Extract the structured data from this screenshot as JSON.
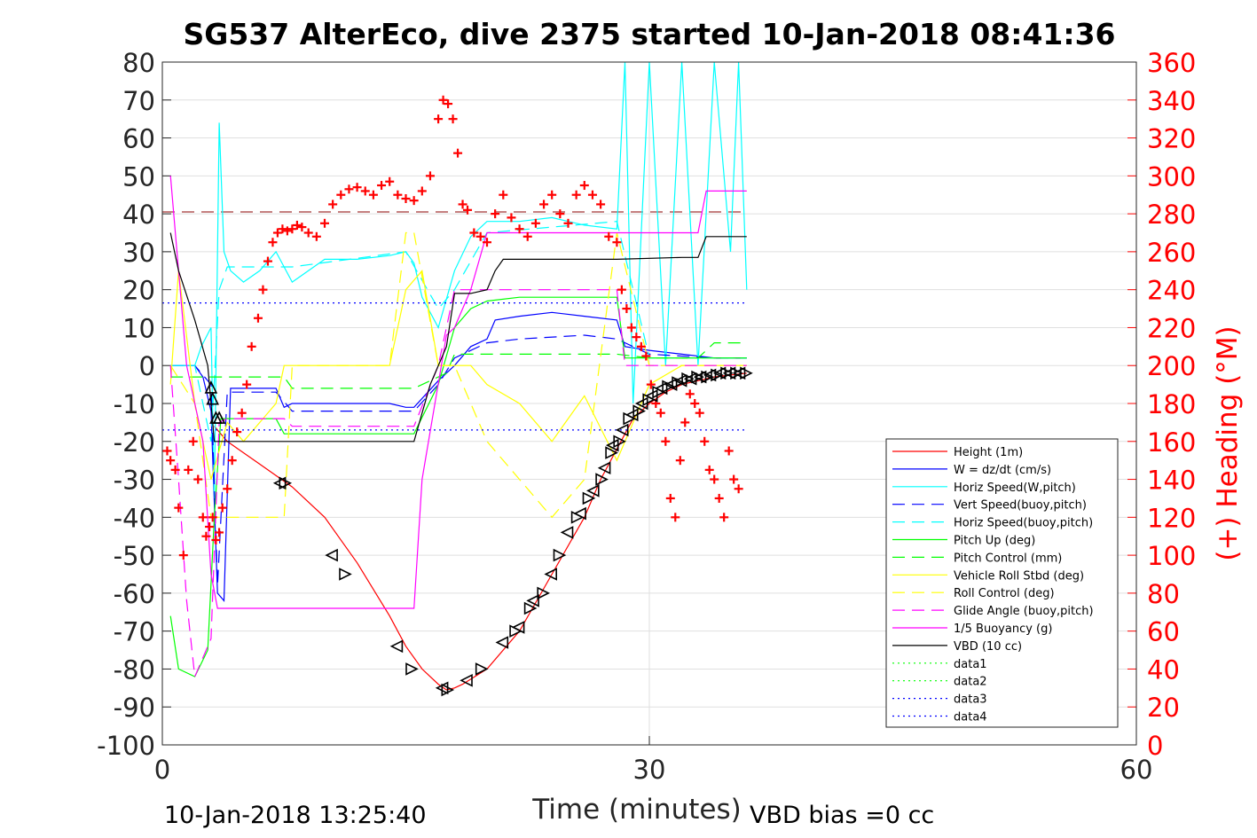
{
  "chart_data": {
    "type": "line",
    "title": "SG537 AlterEco, dive 2375 started 10-Jan-2018 08:41:36",
    "xlabel": "Time (minutes)",
    "ylabel": "",
    "y2label": "(+) Heading (°M)",
    "xlim": [
      0,
      60
    ],
    "ylim": [
      -100,
      80
    ],
    "y2lim": [
      0,
      360
    ],
    "xticks": [
      "0",
      "30",
      "60"
    ],
    "yticks": [
      "80",
      "70",
      "60",
      "50",
      "40",
      "30",
      "20",
      "10",
      "0",
      "-10",
      "-20",
      "-30",
      "-40",
      "-50",
      "-60",
      "-70",
      "-80",
      "-90",
      "-100"
    ],
    "y2ticks": [
      "360",
      "340",
      "320",
      "300",
      "280",
      "260",
      "240",
      "220",
      "200",
      "180",
      "160",
      "140",
      "120",
      "100",
      "80",
      "60",
      "40",
      "20",
      "0"
    ],
    "grid": true,
    "legend_position": "bottom-right",
    "footer_left": "10-Jan-2018 13:25:40",
    "footer_right": "VBD bias =0 cc",
    "colors": {
      "height": "#ff0000",
      "w": "#0000ff",
      "horiz": "#00ffff",
      "pitch": "#00ff00",
      "roll": "#ffff00",
      "glide": "#ff00ff",
      "buoy": "#ff00ff",
      "vbd": "#000000",
      "data12": "#00ff00",
      "data34": "#0000ff",
      "heading": "#ff0000",
      "axis2": "#ff0000"
    },
    "series": [
      {
        "name": "Height (1m)",
        "style": "solid",
        "color": "#ff0000",
        "x": [
          3.2,
          4,
          6,
          8,
          10,
          12,
          14,
          15,
          16,
          17,
          17.5,
          18,
          18.5,
          20,
          22,
          24,
          26,
          27,
          28,
          29,
          30,
          31,
          32,
          33,
          34,
          35,
          36
        ],
        "y": [
          -16,
          -20,
          -26,
          -32,
          -40,
          -52,
          -66,
          -74,
          -80,
          -84,
          -85.5,
          -85,
          -84,
          -80,
          -70,
          -55,
          -40,
          -30,
          -22,
          -14,
          -10,
          -7,
          -5,
          -4,
          -3,
          -2.5,
          -2
        ]
      },
      {
        "name": "W = dz/dt (cm/s)",
        "style": "solid",
        "color": "#0000ff",
        "x": [
          0.5,
          2,
          2.5,
          3,
          3.4,
          3.8,
          4.2,
          5,
          7,
          7.5,
          8,
          10,
          12,
          14,
          15,
          15.5,
          17,
          18,
          19,
          20,
          20.5,
          22,
          24,
          26,
          28,
          28.5,
          30,
          32,
          34,
          36
        ],
        "y": [
          0,
          0,
          -3,
          -12,
          -60,
          -62,
          -6,
          -6,
          -6,
          -11,
          -10,
          -10,
          -10,
          -10,
          -11,
          -11,
          -4,
          0,
          5,
          7,
          12,
          13,
          14,
          13,
          12,
          5,
          4,
          3,
          2,
          2
        ]
      },
      {
        "name": "Horiz Speed(W,pitch)",
        "style": "solid",
        "color": "#00ffff",
        "x": [
          0.5,
          2,
          2.4,
          3,
          3.2,
          3.5,
          3.8,
          4.2,
          5,
          6,
          7,
          8,
          10,
          12,
          14,
          15,
          15.5,
          16,
          17,
          18,
          19,
          20,
          22,
          24,
          26,
          28,
          28.5,
          29,
          30,
          31,
          32,
          33,
          34,
          35,
          35.5,
          36
        ],
        "y": [
          0,
          0,
          5,
          10,
          -35,
          64,
          30,
          25,
          22,
          25,
          30,
          22,
          28,
          28,
          29,
          30,
          27,
          18,
          10,
          25,
          34,
          38,
          38,
          39,
          37,
          36,
          82,
          -10,
          82,
          0,
          82,
          0,
          82,
          30,
          82,
          20
        ]
      },
      {
        "name": "Vert Speed(buoy,pitch)",
        "style": "dashed",
        "color": "#0000ff",
        "x": [
          0.5,
          2,
          3,
          3.4,
          4,
          7,
          8,
          15.5,
          17,
          18,
          20,
          22,
          26,
          28,
          30,
          34,
          36
        ],
        "y": [
          0,
          0,
          -5,
          -58,
          -7,
          -7,
          -12,
          -12,
          -5,
          2,
          6,
          7,
          8,
          7,
          3,
          2,
          2
        ]
      },
      {
        "name": "Horiz Speed(buoy,pitch)",
        "style": "dashed",
        "color": "#00ffff",
        "x": [
          0.5,
          2,
          3,
          3.5,
          4,
          8,
          15,
          17,
          18,
          20,
          28,
          30,
          36
        ],
        "y": [
          0,
          0,
          -20,
          20,
          26,
          26,
          30,
          15,
          20,
          35,
          38,
          2,
          2
        ]
      },
      {
        "name": "Pitch Up (deg)",
        "style": "solid",
        "color": "#00ff00",
        "x": [
          0.5,
          1,
          2,
          2.8,
          3.2,
          3.6,
          4,
          7,
          7.5,
          8,
          15,
          15.5,
          17,
          18,
          19,
          20,
          22,
          24,
          26,
          28,
          28.5,
          30,
          34,
          36
        ],
        "y": [
          -66,
          -80,
          -82,
          -75,
          -40,
          -14,
          -14,
          -14,
          -18,
          -18,
          -18,
          -18,
          -5,
          10,
          15,
          17,
          18,
          18,
          18,
          18,
          2,
          2,
          2,
          2
        ]
      },
      {
        "name": "Pitch Control (mm)",
        "style": "dashed",
        "color": "#00ff00",
        "x": [
          0.5,
          2,
          3,
          7.5,
          8,
          15.5,
          17.5,
          18,
          28,
          30,
          33,
          34,
          36
        ],
        "y": [
          -3,
          -3,
          -3,
          -3,
          -6,
          -6,
          -2,
          3,
          3,
          2,
          2,
          6,
          6
        ]
      },
      {
        "name": "Vehicle Roll Stbd (deg)",
        "style": "solid",
        "color": "#ffff00",
        "x": [
          0.5,
          1,
          2,
          3,
          4,
          5,
          7,
          7.5,
          8,
          10,
          12,
          14,
          15,
          16,
          17,
          18,
          19,
          20,
          22,
          24,
          26,
          28,
          30,
          32,
          34,
          36
        ],
        "y": [
          -5,
          25,
          -10,
          -30,
          -15,
          -20,
          -10,
          0,
          0,
          0,
          0,
          0,
          20,
          25,
          0,
          0,
          0,
          -5,
          -10,
          -20,
          -8,
          -25,
          -5,
          0,
          0,
          0
        ]
      },
      {
        "name": "Roll Control (deg)",
        "style": "dashed",
        "color": "#ffff00",
        "x": [
          0.5,
          2,
          3,
          4,
          7.5,
          8,
          14,
          15,
          15.5,
          17,
          18,
          20,
          22,
          24,
          26,
          28,
          30,
          36
        ],
        "y": [
          0,
          -10,
          -40,
          -40,
          -40,
          0,
          0,
          35,
          35,
          0,
          0,
          -20,
          -30,
          -40,
          -30,
          35,
          0,
          0
        ]
      },
      {
        "name": "Glide Angle (buoy,pitch)",
        "style": "dashed",
        "color": "#ff00ff",
        "x": [
          0.5,
          1,
          1.5,
          2,
          3,
          3.5,
          4,
          7.5,
          8,
          15.5,
          17,
          18,
          20,
          28,
          28.5,
          30,
          36
        ],
        "y": [
          0,
          -30,
          -62,
          -82,
          -72,
          -15,
          -14,
          -14,
          -16,
          -16,
          0,
          20,
          20,
          20,
          0,
          0,
          0
        ]
      },
      {
        "name": "1/5 Buoyancy (g)",
        "style": "solid",
        "color": "#ff00ff",
        "x": [
          0.5,
          1.5,
          2.5,
          3,
          3.4,
          5,
          10,
          15.5,
          16,
          17.5,
          18,
          19,
          20,
          28,
          33,
          33.5,
          36
        ],
        "y": [
          50,
          0,
          -20,
          -55,
          -64,
          -64,
          -64,
          -64,
          -30,
          8,
          10,
          20,
          35,
          35,
          35,
          46,
          46
        ]
      },
      {
        "name": "VBD (10 cc)",
        "style": "solid",
        "color": "#000000",
        "x": [
          0.5,
          1,
          2,
          2.8,
          3.2,
          8,
          15.5,
          16.5,
          17.5,
          18,
          19,
          20,
          20.5,
          21,
          28,
          32,
          33,
          33.5,
          36
        ],
        "y": [
          35,
          25,
          12,
          0,
          -20,
          -20,
          -20,
          -5,
          5,
          19,
          19,
          20,
          25,
          28,
          28,
          28.5,
          28.5,
          34,
          34
        ]
      },
      {
        "name": "data1",
        "style": "dotted",
        "color": "#00ff00",
        "x": [],
        "y": []
      },
      {
        "name": "data2",
        "style": "dotted",
        "color": "#00ff00",
        "x": [],
        "y": []
      },
      {
        "name": "data3",
        "style": "dotted",
        "color": "#0000ff",
        "x": [
          0,
          36
        ],
        "y": [
          -17,
          -17
        ]
      },
      {
        "name": "data4",
        "style": "dotted",
        "color": "#0000ff",
        "x": [
          0,
          36
        ],
        "y": [
          16.5,
          16.5
        ]
      }
    ],
    "reference_lines": [
      {
        "style": "dashed",
        "color": "#8b0000",
        "y": 40.5,
        "x": [
          0,
          36
        ]
      }
    ],
    "heading_points": {
      "axis": "right",
      "marker": "+",
      "color": "#ff0000",
      "x": [
        0.3,
        0.5,
        0.8,
        1.0,
        1.3,
        1.6,
        1.9,
        2.2,
        2.5,
        2.7,
        2.9,
        3.1,
        3.3,
        3.5,
        3.7,
        4.0,
        4.3,
        4.6,
        4.9,
        5.2,
        5.5,
        5.9,
        6.2,
        6.5,
        6.8,
        7.1,
        7.4,
        7.7,
        8.0,
        8.3,
        8.6,
        9.0,
        9.5,
        10.0,
        10.5,
        11.0,
        11.5,
        12.0,
        12.5,
        13.0,
        13.5,
        14.0,
        14.5,
        15.0,
        15.5,
        16.0,
        16.5,
        17.0,
        17.3,
        17.6,
        17.9,
        18.2,
        18.5,
        18.8,
        19.2,
        19.6,
        20.0,
        20.5,
        21.0,
        21.5,
        22.0,
        22.5,
        23.0,
        23.5,
        24.0,
        24.5,
        25.0,
        25.5,
        26.0,
        26.5,
        27.0,
        27.5,
        28.0,
        28.3,
        28.6,
        28.9,
        29.2,
        29.5,
        29.8,
        30.1,
        30.4,
        30.7,
        31.0,
        31.3,
        31.6,
        31.9,
        32.2,
        32.5,
        32.8,
        33.1,
        33.4,
        33.7,
        34.0,
        34.3,
        34.6,
        34.9,
        35.2,
        35.5
      ],
      "y": [
        155,
        150,
        145,
        125,
        100,
        145,
        160,
        140,
        120,
        110,
        115,
        120,
        108,
        112,
        125,
        135,
        150,
        165,
        175,
        190,
        210,
        225,
        240,
        255,
        265,
        270,
        272,
        271,
        272,
        274,
        273,
        270,
        268,
        275,
        285,
        290,
        293,
        294,
        292,
        290,
        295,
        297,
        290,
        288,
        287,
        292,
        300,
        330,
        340,
        338,
        330,
        312,
        285,
        282,
        270,
        268,
        265,
        280,
        290,
        278,
        272,
        268,
        275,
        285,
        290,
        280,
        275,
        290,
        295,
        290,
        285,
        268,
        265,
        240,
        230,
        220,
        215,
        210,
        205,
        190,
        180,
        175,
        160,
        130,
        120,
        150,
        170,
        185,
        180,
        175,
        160,
        145,
        140,
        130,
        120,
        155,
        140,
        135
      ]
    },
    "vbd_markers": {
      "marker": "triangle",
      "color": "#000000",
      "x": [
        3.0,
        3.1,
        3.3,
        3.5,
        7.3,
        7.5,
        10.5,
        11.2,
        14.5,
        15.3,
        17.3,
        17.5,
        18.8,
        19.6,
        21.0,
        21.7,
        22.0,
        22.6,
        22.9,
        23.4,
        24.0,
        24.4,
        25.0,
        25.5,
        25.8,
        26.2,
        26.6,
        27.0,
        27.3,
        27.6,
        27.8,
        28.1,
        28.4,
        28.7,
        29.0,
        29.3,
        29.6,
        29.9,
        30.2,
        30.5,
        30.8,
        31.1,
        31.4,
        31.7,
        32.0,
        32.3,
        32.6,
        32.9,
        33.2,
        33.5,
        33.8,
        34.1,
        34.4,
        34.7,
        35.0,
        35.3,
        35.6,
        35.9
      ],
      "y": [
        -6,
        -9,
        -14,
        -14,
        -31,
        -31,
        -50,
        -55,
        -74,
        -80,
        -85,
        -85.5,
        -83,
        -80,
        -73,
        -70,
        -69,
        -64,
        -62,
        -60,
        -55,
        -50,
        -44,
        -40,
        -39,
        -35,
        -33,
        -30,
        -27,
        -23,
        -21,
        -20,
        -17,
        -14,
        -13,
        -12,
        -10,
        -9,
        -8,
        -7,
        -6,
        -5.5,
        -5,
        -4.5,
        -4,
        -3.5,
        -3.5,
        -3,
        -3,
        -3,
        -2.5,
        -2.5,
        -2,
        -2,
        -2,
        -2,
        -2,
        -2
      ]
    }
  }
}
